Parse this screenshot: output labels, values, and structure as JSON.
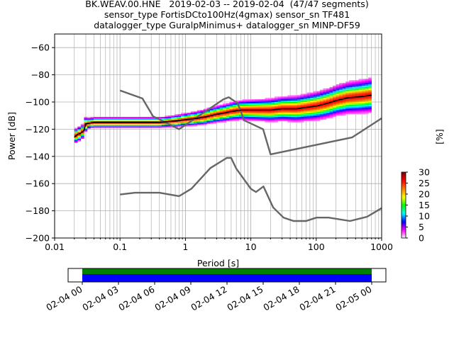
{
  "chart_data": {
    "type": "heatmap",
    "title_lines": [
      "BK.WEAV.00.HNE   2019-02-03 -- 2019-02-04  (47/47 segments)",
      "sensor_type FortisDCto100Hz(4gmax) sensor_sn TF481",
      "datalogger_type GuralpMinimus+ datalogger_sn MINP-DF59"
    ],
    "xlabel": "Period [s]",
    "ylabel": "Power [dB]",
    "x_scale": "log",
    "xlim": [
      0.01,
      1000
    ],
    "ylim": [
      -200,
      -50
    ],
    "x_tick_labels": [
      "0.01",
      "0.1",
      "1",
      "10",
      "100",
      "1000"
    ],
    "y_ticks": [
      -200,
      -180,
      -160,
      -140,
      -120,
      -100,
      -80,
      -60
    ],
    "grid": true,
    "colorbar": {
      "label": "[%]",
      "ticks": [
        0,
        5,
        10,
        15,
        20,
        25,
        30
      ],
      "range": [
        0,
        30
      ],
      "colormap": [
        "#ffffff",
        "#ff00ff",
        "#0000ff",
        "#00ffff",
        "#00ff00",
        "#ffff00",
        "#ff8000",
        "#ff0000",
        "#800000"
      ]
    },
    "series": [
      {
        "name": "mean",
        "color": "#000000",
        "x": [
          0.02,
          0.022,
          0.025,
          0.028,
          0.03,
          0.04,
          0.06,
          0.1,
          0.2,
          0.4,
          0.7,
          1,
          1.5,
          2,
          3,
          4,
          5,
          7,
          10,
          15,
          20,
          30,
          50,
          70,
          100,
          150,
          200,
          300,
          500,
          700
        ],
        "values": [
          -126,
          -124,
          -123,
          -121,
          -116,
          -115,
          -115,
          -115,
          -115,
          -115,
          -114,
          -113,
          -112,
          -111,
          -109,
          -108,
          -107,
          -106,
          -106,
          -106,
          -106,
          -105,
          -105,
          -104,
          -103,
          -101,
          -99,
          -97,
          -96,
          -95
        ]
      },
      {
        "name": "NHNM",
        "color": "#666666",
        "x": [
          0.1,
          0.22,
          0.32,
          0.8,
          3.8,
          4.6,
          6.3,
          7.9,
          15.4,
          20,
          354.8,
          1000
        ],
        "values": [
          -91.5,
          -97.4,
          -110.5,
          -120,
          -98,
          -96.5,
          -101,
          -113.5,
          -120,
          -138.5,
          -126,
          -112
        ]
      },
      {
        "name": "NLNM",
        "color": "#666666",
        "x": [
          0.1,
          0.17,
          0.4,
          0.8,
          1.24,
          2.4,
          4.3,
          5,
          6,
          10,
          12,
          15.6,
          21.9,
          31.6,
          45,
          70,
          101,
          154,
          328,
          600,
          1000
        ],
        "values": [
          -168,
          -166.7,
          -166.7,
          -169.2,
          -163.7,
          -148.6,
          -141.1,
          -141.1,
          -149,
          -163.8,
          -166.2,
          -162.1,
          -177.5,
          -185,
          -187.5,
          -187.5,
          -185,
          -185,
          -187.5,
          -184.4,
          -178
        ]
      }
    ],
    "timeline": {
      "tick_labels": [
        "02-04 00",
        "02-04 03",
        "02-04 06",
        "02-04 09",
        "02-04 12",
        "02-04 15",
        "02-04 18",
        "02-04 21",
        "02-05 00"
      ],
      "coverage_colors": [
        "#008000",
        "#0000ff"
      ]
    }
  }
}
